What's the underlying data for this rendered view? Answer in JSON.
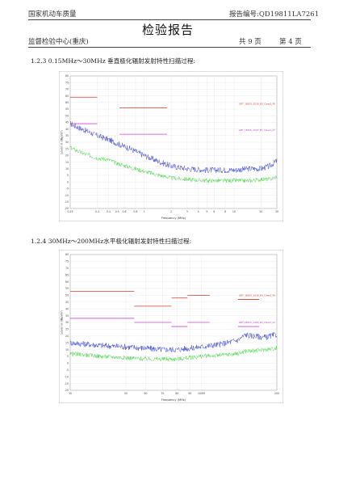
{
  "header": {
    "org_line1": "国家机动车质量",
    "org_line2": "监督检验中心(重庆)",
    "title": "检验报告",
    "report_no_label": "报告编号:",
    "report_no": "QD19811LA7261",
    "total_pages": "共 9 页",
    "page_no": "第 4 页"
  },
  "sections": [
    {
      "label": "1.2.3 0.15MHz～30MHz 垂直极化辐射发射特性扫描过程:"
    },
    {
      "label": "1.2.4 30MHz～200MHz水平极化辐射发射特性扫描过程:"
    }
  ],
  "colors": {
    "peak_trace": "#2a36c8",
    "avg_trace": "#3ad23a",
    "limit_peak": "#d23a2a",
    "limit_avg": "#c84ad2"
  },
  "chart_data": [
    {
      "type": "line",
      "title": "",
      "xlabel": "Frequency (MHz)",
      "ylabel": "Level in dBμV/m",
      "x_scale": "log",
      "xlim": [
        0.15,
        30
      ],
      "ylim": [
        -20,
        80
      ],
      "x_ticks": [
        {
          "value": 0.15,
          "label": "0.15"
        },
        {
          "value": 0.3,
          "label": "0.3"
        },
        {
          "value": 0.4,
          "label": "0.4"
        },
        {
          "value": 0.5,
          "label": "0.5"
        },
        {
          "value": 0.6,
          "label": "0.6"
        },
        {
          "value": 0.8,
          "label": "0.8"
        },
        {
          "value": 1,
          "label": "1"
        },
        {
          "value": 2,
          "label": "2"
        },
        {
          "value": 3,
          "label": "3"
        },
        {
          "value": 4,
          "label": "4"
        },
        {
          "value": 5,
          "label": "5"
        },
        {
          "value": 6,
          "label": "6"
        },
        {
          "value": 8,
          "label": "8"
        },
        {
          "value": 10,
          "label": "10"
        },
        {
          "value": 20,
          "label": "20"
        },
        {
          "value": 30,
          "label": "30"
        }
      ],
      "y_ticks": [
        -20,
        -15,
        -10,
        -5,
        0,
        5,
        10,
        15,
        20,
        25,
        30,
        35,
        40,
        45,
        50,
        55,
        60,
        65,
        70,
        75,
        80
      ],
      "legend": [
        "GBT_18655_2018_B3_Class3_Pk",
        "GBT_18655_2018_B3_Class3_AV"
      ],
      "limits": [
        {
          "name": "peak",
          "segments": [
            [
              0.15,
              0.3,
              64
            ],
            [
              0.53,
              1.8,
              56
            ]
          ]
        },
        {
          "name": "average",
          "segments": [
            [
              0.15,
              0.3,
              44
            ],
            [
              0.53,
              1.8,
              36
            ]
          ]
        }
      ],
      "series": [
        {
          "name": "peak",
          "x": [
            0.15,
            0.2,
            0.3,
            0.4,
            0.5,
            0.7,
            1,
            1.5,
            2,
            3,
            5,
            8,
            10,
            15,
            20,
            25,
            30
          ],
          "values": [
            44,
            40,
            35,
            32,
            29,
            25,
            20,
            15,
            12,
            10,
            9,
            9,
            9,
            10,
            10,
            12,
            16
          ]
        },
        {
          "name": "average",
          "x": [
            0.15,
            0.2,
            0.3,
            0.4,
            0.5,
            0.7,
            1,
            1.5,
            2,
            3,
            5,
            8,
            10,
            15,
            20,
            25,
            30
          ],
          "values": [
            26,
            22,
            18,
            17,
            14,
            11,
            8,
            5,
            3,
            2,
            1,
            1,
            1,
            1,
            2,
            2,
            4
          ]
        }
      ]
    },
    {
      "type": "line",
      "title": "",
      "xlabel": "Frequency (MHz)",
      "ylabel": "Level in dBμV/m",
      "x_scale": "log",
      "xlim": [
        30,
        200
      ],
      "ylim": [
        -20,
        80
      ],
      "x_ticks": [
        {
          "value": 30,
          "label": "30"
        },
        {
          "value": 50,
          "label": "50"
        },
        {
          "value": 60,
          "label": "60"
        },
        {
          "value": 70,
          "label": "70"
        },
        {
          "value": 80,
          "label": "80"
        },
        {
          "value": 90,
          "label": "90"
        },
        {
          "value": 100,
          "label": "100M"
        },
        {
          "value": 200,
          "label": "200"
        }
      ],
      "y_ticks": [
        -20,
        -15,
        -10,
        -5,
        0,
        5,
        10,
        15,
        20,
        25,
        30,
        35,
        40,
        45,
        50,
        55,
        60,
        65,
        70,
        75,
        80
      ],
      "legend": [
        "GBT_18655_2018_B3_Class3_Pk",
        "GBT_18655_2018_B3_Class3_AV"
      ],
      "limits": [
        {
          "name": "peak",
          "segments": [
            [
              30,
              54,
              53
            ],
            [
              54,
              76,
              42
            ],
            [
              76,
              88,
              48
            ],
            [
              88,
              108,
              50
            ],
            [
              140,
              170,
              47
            ]
          ]
        },
        {
          "name": "average",
          "segments": [
            [
              30,
              54,
              33
            ],
            [
              54,
              76,
              30
            ],
            [
              76,
              88,
              27
            ],
            [
              88,
              108,
              30
            ],
            [
              140,
              170,
              27
            ]
          ]
        }
      ],
      "series": [
        {
          "name": "peak",
          "x": [
            30,
            35,
            40,
            50,
            60,
            70,
            80,
            90,
            100,
            120,
            140,
            150,
            160,
            180,
            200
          ],
          "values": [
            15,
            14,
            13,
            12,
            11,
            10,
            10,
            11,
            12,
            14,
            17,
            21,
            20,
            19,
            21
          ]
        },
        {
          "name": "average",
          "x": [
            30,
            35,
            40,
            50,
            60,
            70,
            80,
            90,
            100,
            120,
            140,
            150,
            160,
            180,
            200
          ],
          "values": [
            7,
            6,
            5,
            4,
            3,
            3,
            3,
            4,
            5,
            6,
            7,
            9,
            9,
            10,
            11
          ]
        }
      ]
    }
  ]
}
